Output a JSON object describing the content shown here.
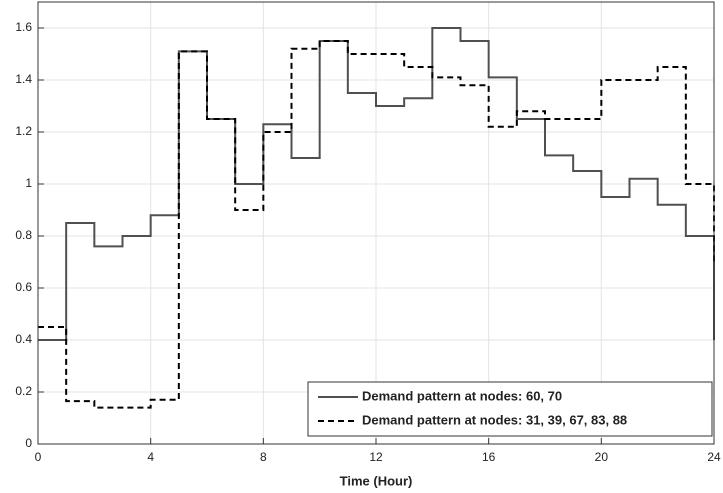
{
  "chart_data": {
    "type": "line",
    "step": "post",
    "x_label": "Time (Hour)",
    "x": [
      0,
      1,
      2,
      3,
      4,
      5,
      6,
      7,
      8,
      9,
      10,
      11,
      12,
      13,
      14,
      15,
      16,
      17,
      18,
      19,
      20,
      21,
      22,
      23,
      24
    ],
    "series": [
      {
        "name": "Demand pattern at nodes: 60, 70",
        "color": "#505050",
        "dash": "solid",
        "values": [
          0.4,
          0.85,
          0.76,
          0.8,
          0.88,
          1.51,
          1.25,
          1.0,
          1.23,
          1.1,
          1.55,
          1.35,
          1.3,
          1.33,
          1.6,
          1.55,
          1.41,
          1.25,
          1.11,
          1.05,
          0.95,
          1.02,
          0.92,
          0.8,
          0.4
        ]
      },
      {
        "name": "Demand pattern at nodes: 31, 39, 67, 83, 88",
        "color": "#000000",
        "dash": "dashed",
        "values": [
          0.45,
          0.165,
          0.14,
          0.14,
          0.17,
          1.51,
          1.25,
          0.9,
          1.2,
          1.52,
          1.55,
          1.5,
          1.5,
          1.45,
          1.41,
          1.38,
          1.22,
          1.28,
          1.25,
          1.25,
          1.4,
          1.4,
          1.45,
          1.0,
          0.7
        ]
      }
    ],
    "xlim": [
      0,
      24
    ],
    "xticks": [
      0,
      4,
      8,
      12,
      16,
      20,
      24
    ],
    "ylim": [
      0,
      1.7
    ],
    "yticks": [
      0,
      0.2,
      0.4,
      0.6,
      0.8,
      1,
      1.2,
      1.4,
      1.6
    ],
    "grid": true,
    "legend": "lower right"
  }
}
